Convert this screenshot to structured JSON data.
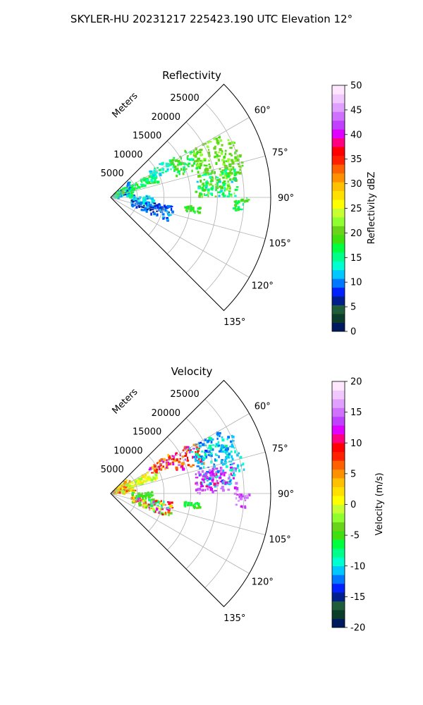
{
  "figure": {
    "suptitle": "SKYLER-HU  20231217  225423.190 UTC Elevation 12°"
  },
  "chart_data": [
    {
      "type": "heatmap",
      "projection": "polar-sector",
      "title": "Reflectivity",
      "range_label": "Meters",
      "azimuth_range_deg": [
        45,
        135
      ],
      "azimuth_ticks": [
        "60°",
        "75°",
        "90°",
        "105°",
        "120°",
        "135°"
      ],
      "azimuth_tick_values": [
        60,
        75,
        90,
        105,
        120,
        135
      ],
      "range_max_m": 30000,
      "range_ticks": [
        "5000",
        "10000",
        "15000",
        "20000",
        "25000"
      ],
      "range_tick_values": [
        5000,
        10000,
        15000,
        20000,
        25000
      ],
      "grid": true,
      "colorbar": {
        "label": "Reflectivity dBZ",
        "min": 0,
        "max": 50,
        "ticks": [
          "0",
          "5",
          "10",
          "15",
          "20",
          "25",
          "30",
          "35",
          "40",
          "45",
          "50"
        ],
        "tick_values": [
          0,
          5,
          10,
          15,
          20,
          25,
          30,
          35,
          40,
          45,
          50
        ],
        "colors": [
          "#001a5e",
          "#0b3d2a",
          "#1f5c3a",
          "#001e8c",
          "#0022ff",
          "#0077ff",
          "#00c8ff",
          "#00ffd0",
          "#00ff88",
          "#00ff40",
          "#40e010",
          "#6ad41a",
          "#90ff30",
          "#c8ff30",
          "#ffff00",
          "#ffe000",
          "#ffc000",
          "#ff9000",
          "#ff6000",
          "#ff2000",
          "#ff0000",
          "#ff0080",
          "#e000ff",
          "#c040ff",
          "#d070ff",
          "#e0a0ff",
          "#f0c8ff",
          "#ffe8ff"
        ]
      },
      "echo_regions": [
        {
          "az": [
            50,
            88
          ],
          "r": [
            600,
            4500
          ],
          "v": [
            8,
            20
          ]
        },
        {
          "az": [
            60,
            72
          ],
          "r": [
            4000,
            9500
          ],
          "v": [
            13,
            20
          ]
        },
        {
          "az": [
            56,
            66
          ],
          "r": [
            8500,
            13500
          ],
          "v": [
            11,
            17
          ]
        },
        {
          "az": [
            58,
            72
          ],
          "r": [
            13000,
            18500
          ],
          "v": [
            14,
            21
          ]
        },
        {
          "az": [
            60,
            86
          ],
          "r": [
            17000,
            23500
          ],
          "v": [
            18,
            23
          ]
        },
        {
          "az": [
            64,
            80
          ],
          "r": [
            22000,
            25500
          ],
          "v": [
            19,
            22
          ]
        },
        {
          "az": [
            76,
            90
          ],
          "r": [
            16000,
            24000
          ],
          "v": [
            12,
            22
          ]
        },
        {
          "az": [
            90,
            96
          ],
          "r": [
            23000,
            26000
          ],
          "v": [
            15,
            20
          ]
        },
        {
          "az": [
            96,
            100
          ],
          "r": [
            14000,
            17000
          ],
          "v": [
            17,
            20
          ]
        },
        {
          "az": [
            88,
            100
          ],
          "r": [
            4000,
            8000
          ],
          "v": [
            10,
            14
          ]
        },
        {
          "az": [
            98,
            112
          ],
          "r": [
            4000,
            12000
          ],
          "v": [
            6,
            12
          ]
        }
      ]
    },
    {
      "type": "heatmap",
      "projection": "polar-sector",
      "title": "Velocity",
      "range_label": "Meters",
      "azimuth_range_deg": [
        45,
        135
      ],
      "azimuth_ticks": [
        "60°",
        "75°",
        "90°",
        "105°",
        "120°",
        "135°"
      ],
      "azimuth_tick_values": [
        60,
        75,
        90,
        105,
        120,
        135
      ],
      "range_max_m": 30000,
      "range_ticks": [
        "5000",
        "10000",
        "15000",
        "20000",
        "25000"
      ],
      "range_tick_values": [
        5000,
        10000,
        15000,
        20000,
        25000
      ],
      "grid": true,
      "colorbar": {
        "label": "Velocity (m/s)",
        "min": -20,
        "max": 20,
        "ticks": [
          "-20",
          "-15",
          "-10",
          "-5",
          "0",
          "5",
          "10",
          "15",
          "20"
        ],
        "tick_values": [
          -20,
          -15,
          -10,
          -5,
          0,
          5,
          10,
          15,
          20
        ],
        "colors": [
          "#001a5e",
          "#0b3d2a",
          "#1f5c3a",
          "#001e8c",
          "#0022ff",
          "#0077ff",
          "#00c8ff",
          "#00ffd0",
          "#00ff88",
          "#00ff40",
          "#40e010",
          "#6ad41a",
          "#90ff30",
          "#c8ff30",
          "#ffff00",
          "#ffe000",
          "#ffc000",
          "#ff9000",
          "#ff6000",
          "#ff2000",
          "#ff0000",
          "#ff0080",
          "#e000ff",
          "#c040ff",
          "#d070ff",
          "#e0a0ff",
          "#f0c8ff",
          "#ffe8ff"
        ]
      },
      "echo_regions": [
        {
          "az": [
            50,
            88
          ],
          "r": [
            600,
            4500
          ],
          "v": [
            -3,
            8
          ]
        },
        {
          "az": [
            60,
            72
          ],
          "r": [
            4000,
            9500
          ],
          "v": [
            -2,
            3
          ]
        },
        {
          "az": [
            56,
            66
          ],
          "r": [
            8500,
            13500
          ],
          "v": [
            3,
            13
          ]
        },
        {
          "az": [
            58,
            72
          ],
          "r": [
            13000,
            18500
          ],
          "v": [
            4,
            14
          ]
        },
        {
          "az": [
            60,
            86
          ],
          "r": [
            17000,
            23500
          ],
          "v": [
            -13,
            -8
          ]
        },
        {
          "az": [
            64,
            80
          ],
          "r": [
            22000,
            25500
          ],
          "v": [
            -12,
            -9
          ]
        },
        {
          "az": [
            76,
            90
          ],
          "r": [
            16000,
            24000
          ],
          "v": [
            11,
            16
          ]
        },
        {
          "az": [
            90,
            96
          ],
          "r": [
            23000,
            26000
          ],
          "v": [
            12,
            17
          ]
        },
        {
          "az": [
            96,
            100
          ],
          "r": [
            14000,
            17000
          ],
          "v": [
            -7,
            -4
          ]
        },
        {
          "az": [
            88,
            100
          ],
          "r": [
            4000,
            8000
          ],
          "v": [
            -7,
            -4
          ]
        },
        {
          "az": [
            98,
            112
          ],
          "r": [
            4000,
            12000
          ],
          "v": [
            -10,
            14
          ]
        }
      ]
    }
  ]
}
